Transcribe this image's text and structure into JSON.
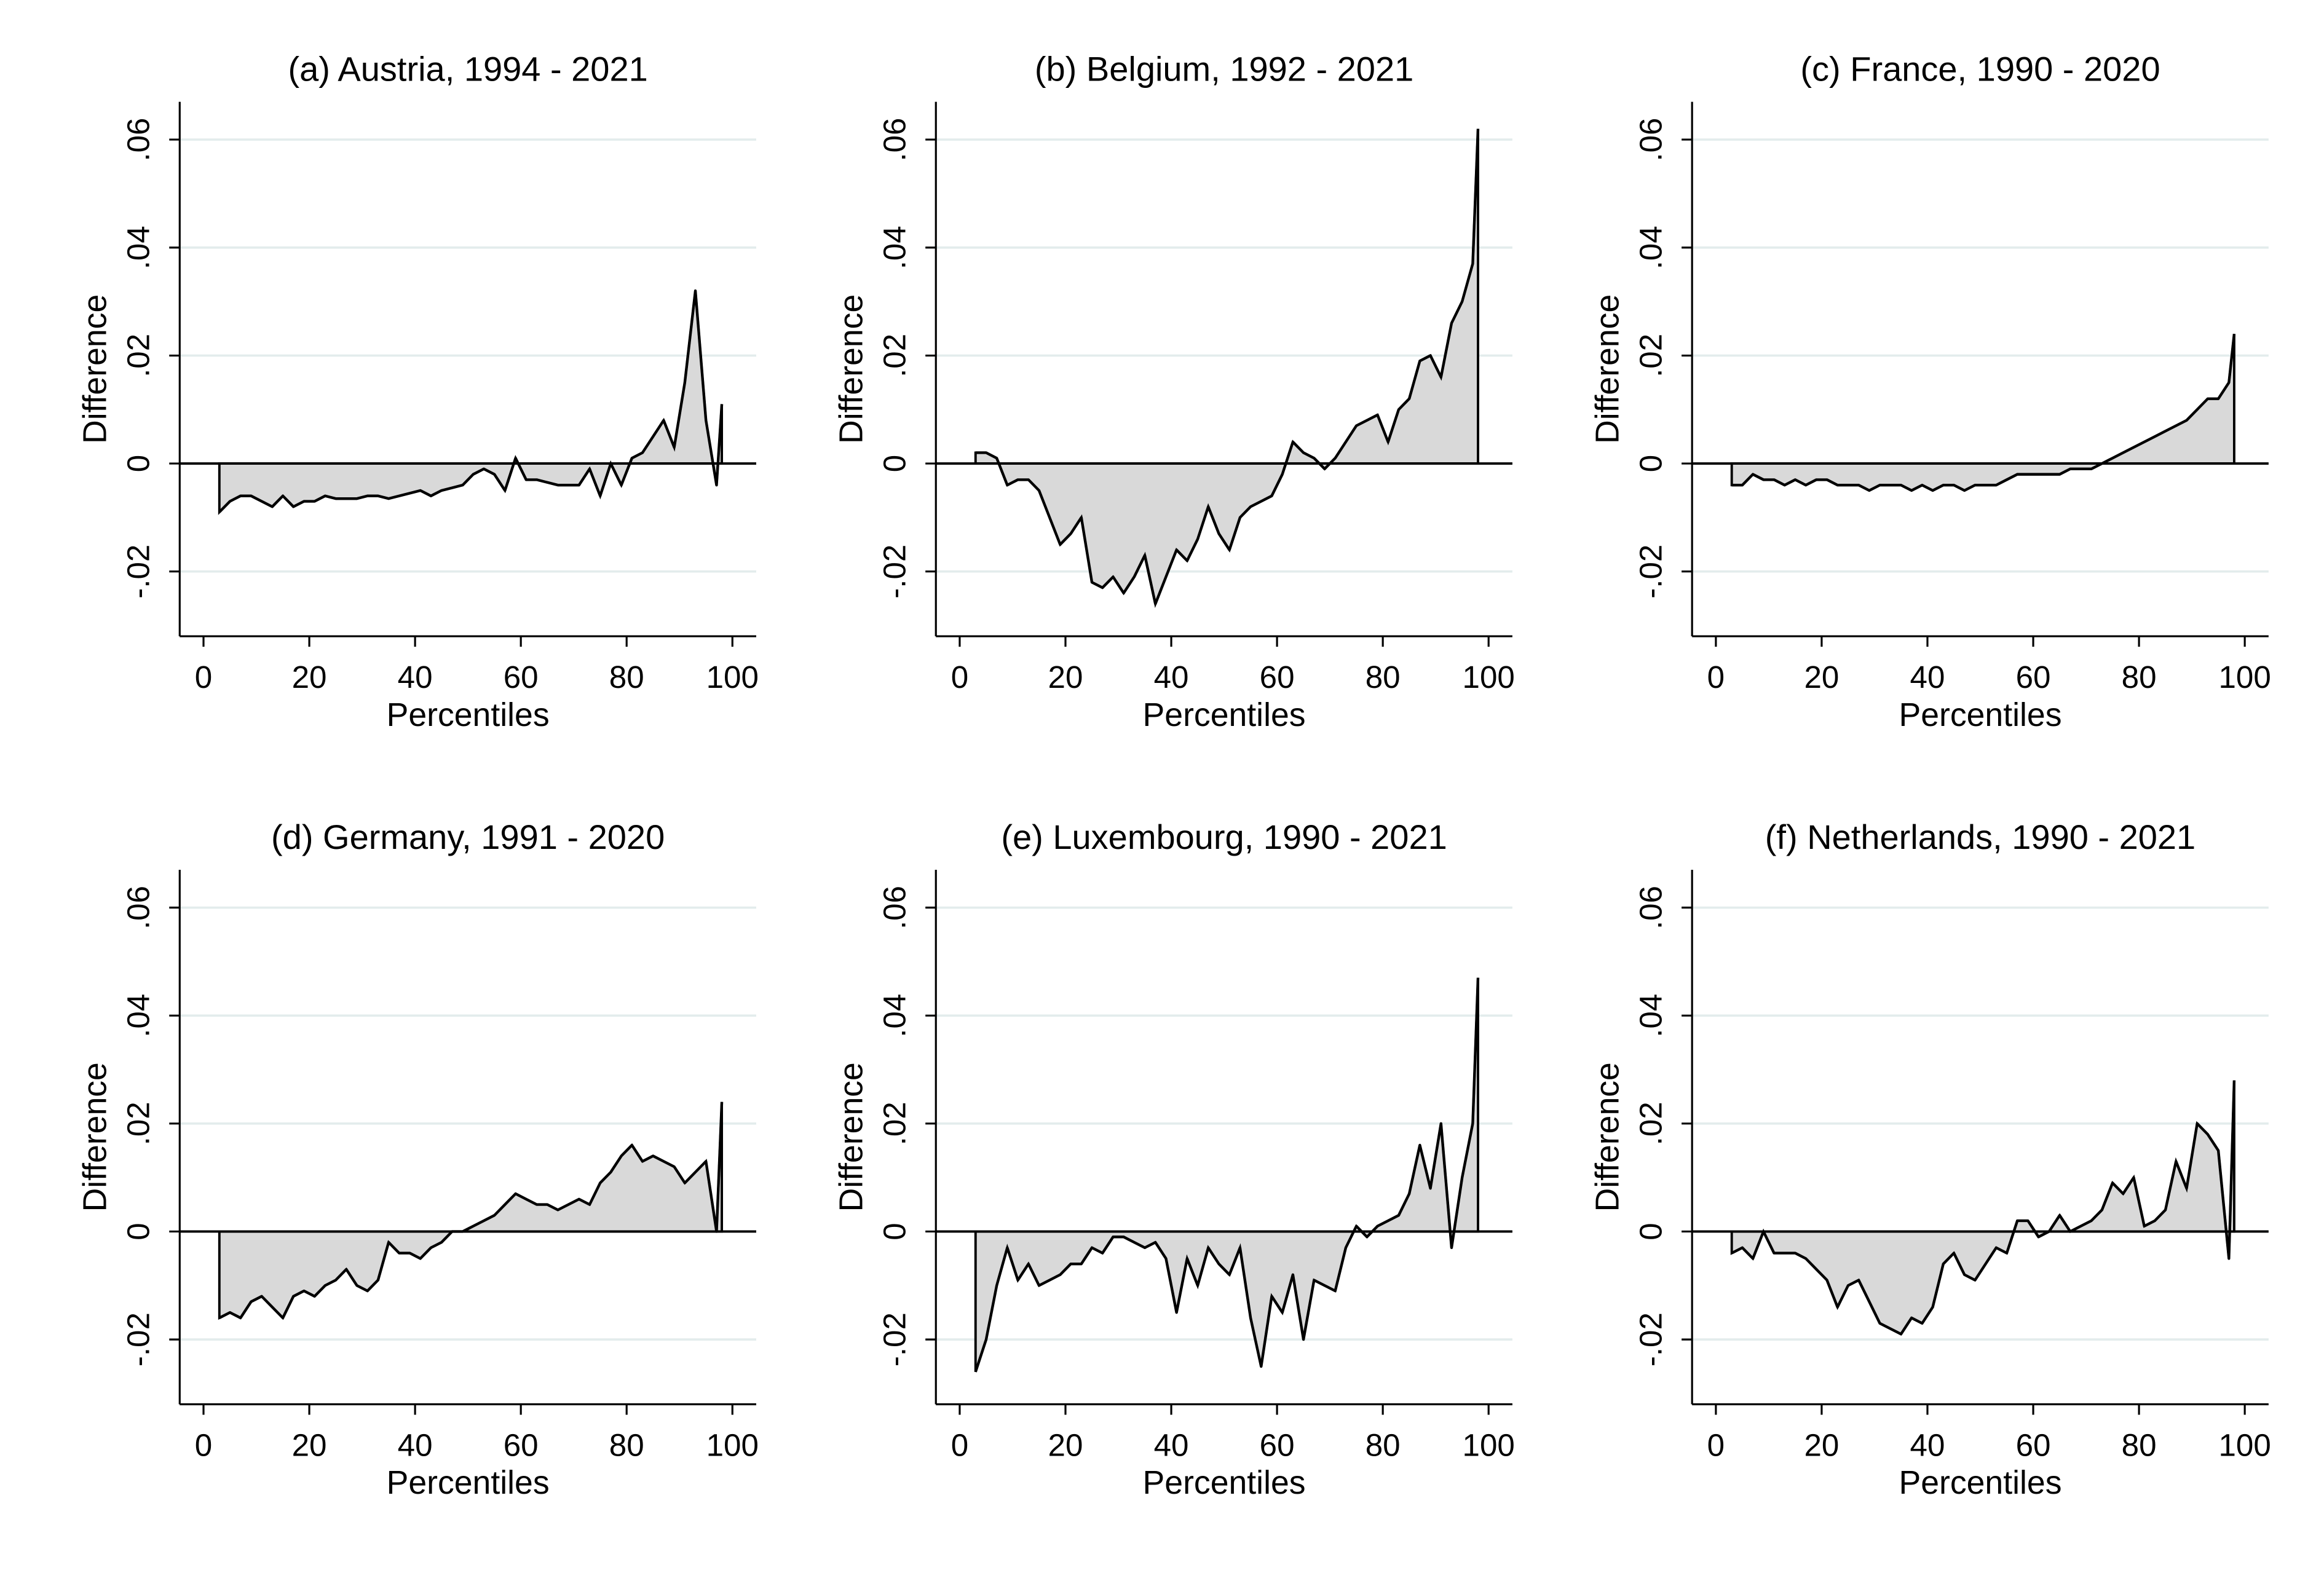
{
  "chart_data": [
    {
      "type": "area",
      "title": "(a) Austria, 1994 - 2021",
      "xlabel": "Percentiles",
      "ylabel": "Difference",
      "fill": "#d9d9d9",
      "line_color": "#000000",
      "grid": true,
      "x": [
        3,
        5,
        7,
        9,
        11,
        13,
        15,
        17,
        19,
        21,
        23,
        25,
        27,
        29,
        31,
        33,
        35,
        37,
        39,
        41,
        43,
        45,
        47,
        49,
        51,
        53,
        55,
        57,
        59,
        61,
        63,
        65,
        67,
        69,
        71,
        73,
        75,
        77,
        79,
        81,
        83,
        85,
        87,
        89,
        91,
        93,
        95,
        97,
        98
      ],
      "values": [
        -0.009,
        -0.007,
        -0.006,
        -0.006,
        -0.007,
        -0.008,
        -0.006,
        -0.008,
        -0.007,
        -0.007,
        -0.006,
        -0.0065,
        -0.0065,
        -0.0065,
        -0.006,
        -0.006,
        -0.0065,
        -0.006,
        -0.0055,
        -0.005,
        -0.006,
        -0.005,
        -0.0045,
        -0.004,
        -0.002,
        -0.001,
        -0.002,
        -0.005,
        0.001,
        -0.003,
        -0.003,
        -0.0035,
        -0.004,
        -0.004,
        -0.004,
        -0.001,
        -0.006,
        0,
        -0.004,
        0.001,
        0.002,
        0.005,
        0.008,
        0.003,
        0.015,
        0.032,
        0.008,
        -0.004,
        0.011
      ],
      "xlim": [
        -4.5,
        104.5
      ],
      "ylim": [
        -0.032,
        0.067
      ],
      "xticks": [
        0,
        20,
        40,
        60,
        80,
        100
      ],
      "yticks": [
        {
          "value": -0.02,
          "label": "-.02"
        },
        0,
        {
          "value": 0.02,
          "label": ".02"
        },
        {
          "value": 0.04,
          "label": ".04"
        },
        {
          "value": 0.06,
          "label": ".06"
        }
      ]
    },
    {
      "type": "area",
      "title": "(b) Belgium, 1992 - 2021",
      "xlabel": "Percentiles",
      "ylabel": "Difference",
      "fill": "#d9d9d9",
      "line_color": "#000000",
      "grid": true,
      "x": [
        3,
        5,
        7,
        9,
        11,
        13,
        15,
        17,
        19,
        21,
        23,
        25,
        27,
        29,
        31,
        33,
        35,
        37,
        39,
        41,
        43,
        45,
        47,
        49,
        51,
        53,
        55,
        57,
        59,
        61,
        63,
        65,
        67,
        69,
        71,
        73,
        75,
        77,
        79,
        81,
        83,
        85,
        87,
        89,
        91,
        93,
        95,
        97,
        98
      ],
      "values": [
        0.002,
        0.002,
        0.001,
        -0.004,
        -0.003,
        -0.003,
        -0.005,
        -0.01,
        -0.015,
        -0.013,
        -0.01,
        -0.022,
        -0.023,
        -0.021,
        -0.024,
        -0.021,
        -0.017,
        -0.026,
        -0.021,
        -0.016,
        -0.018,
        -0.014,
        -0.008,
        -0.013,
        -0.016,
        -0.01,
        -0.008,
        -0.007,
        -0.006,
        -0.002,
        0.004,
        0.002,
        0.001,
        -0.001,
        0.001,
        0.004,
        0.007,
        0.008,
        0.009,
        0.004,
        0.01,
        0.012,
        0.019,
        0.02,
        0.016,
        0.026,
        0.03,
        0.037,
        0.062
      ],
      "xlim": [
        -4.5,
        104.5
      ],
      "ylim": [
        -0.032,
        0.067
      ],
      "xticks": [
        0,
        20,
        40,
        60,
        80,
        100
      ],
      "yticks": [
        {
          "value": -0.02,
          "label": "-.02"
        },
        0,
        {
          "value": 0.02,
          "label": ".02"
        },
        {
          "value": 0.04,
          "label": ".04"
        },
        {
          "value": 0.06,
          "label": ".06"
        }
      ]
    },
    {
      "type": "area",
      "title": "(c) France, 1990 - 2020",
      "xlabel": "Percentiles",
      "ylabel": "Difference",
      "fill": "#d9d9d9",
      "line_color": "#000000",
      "grid": true,
      "x": [
        3,
        5,
        7,
        9,
        11,
        13,
        15,
        17,
        19,
        21,
        23,
        25,
        27,
        29,
        31,
        33,
        35,
        37,
        39,
        41,
        43,
        45,
        47,
        49,
        51,
        53,
        55,
        57,
        59,
        61,
        63,
        65,
        67,
        69,
        71,
        73,
        75,
        77,
        79,
        81,
        83,
        85,
        87,
        89,
        91,
        93,
        95,
        97,
        98
      ],
      "values": [
        -0.004,
        -0.004,
        -0.002,
        -0.003,
        -0.003,
        -0.004,
        -0.003,
        -0.004,
        -0.003,
        -0.003,
        -0.004,
        -0.004,
        -0.004,
        -0.005,
        -0.004,
        -0.004,
        -0.004,
        -0.005,
        -0.004,
        -0.005,
        -0.004,
        -0.004,
        -0.005,
        -0.004,
        -0.004,
        -0.004,
        -0.003,
        -0.002,
        -0.002,
        -0.002,
        -0.002,
        -0.002,
        -0.001,
        -0.001,
        -0.001,
        0,
        0.001,
        0.002,
        0.003,
        0.004,
        0.005,
        0.006,
        0.007,
        0.008,
        0.01,
        0.012,
        0.012,
        0.015,
        0.024
      ],
      "xlim": [
        -4.5,
        104.5
      ],
      "ylim": [
        -0.032,
        0.067
      ],
      "xticks": [
        0,
        20,
        40,
        60,
        80,
        100
      ],
      "yticks": [
        {
          "value": -0.02,
          "label": "-.02"
        },
        0,
        {
          "value": 0.02,
          "label": ".02"
        },
        {
          "value": 0.04,
          "label": ".04"
        },
        {
          "value": 0.06,
          "label": ".06"
        }
      ]
    },
    {
      "type": "area",
      "title": "(d) Germany, 1991 - 2020",
      "xlabel": "Percentiles",
      "ylabel": "Difference",
      "fill": "#d9d9d9",
      "line_color": "#000000",
      "grid": true,
      "x": [
        3,
        5,
        7,
        9,
        11,
        13,
        15,
        17,
        19,
        21,
        23,
        25,
        27,
        29,
        31,
        33,
        35,
        37,
        39,
        41,
        43,
        45,
        47,
        49,
        51,
        53,
        55,
        57,
        59,
        61,
        63,
        65,
        67,
        69,
        71,
        73,
        75,
        77,
        79,
        81,
        83,
        85,
        87,
        89,
        91,
        93,
        95,
        97,
        98
      ],
      "values": [
        -0.016,
        -0.015,
        -0.016,
        -0.013,
        -0.012,
        -0.014,
        -0.016,
        -0.012,
        -0.011,
        -0.012,
        -0.01,
        -0.009,
        -0.007,
        -0.01,
        -0.011,
        -0.009,
        -0.002,
        -0.004,
        -0.004,
        -0.005,
        -0.003,
        -0.002,
        0,
        0,
        0.001,
        0.002,
        0.003,
        0.005,
        0.007,
        0.006,
        0.005,
        0.005,
        0.004,
        0.005,
        0.006,
        0.005,
        0.009,
        0.011,
        0.014,
        0.016,
        0.013,
        0.014,
        0.013,
        0.012,
        0.009,
        0.011,
        0.013,
        0,
        0.024
      ],
      "xlim": [
        -4.5,
        104.5
      ],
      "ylim": [
        -0.032,
        0.067
      ],
      "xticks": [
        0,
        20,
        40,
        60,
        80,
        100
      ],
      "yticks": [
        {
          "value": -0.02,
          "label": "-.02"
        },
        0,
        {
          "value": 0.02,
          "label": ".02"
        },
        {
          "value": 0.04,
          "label": ".04"
        },
        {
          "value": 0.06,
          "label": ".06"
        }
      ]
    },
    {
      "type": "area",
      "title": "(e) Luxembourg, 1990 - 2021",
      "xlabel": "Percentiles",
      "ylabel": "Difference",
      "fill": "#d9d9d9",
      "line_color": "#000000",
      "grid": true,
      "x": [
        3,
        5,
        7,
        9,
        11,
        13,
        15,
        17,
        19,
        21,
        23,
        25,
        27,
        29,
        31,
        33,
        35,
        37,
        39,
        41,
        43,
        45,
        47,
        49,
        51,
        53,
        55,
        57,
        59,
        61,
        63,
        65,
        67,
        69,
        71,
        73,
        75,
        77,
        79,
        81,
        83,
        85,
        87,
        89,
        91,
        93,
        95,
        97,
        98
      ],
      "values": [
        -0.026,
        -0.02,
        -0.01,
        -0.003,
        -0.009,
        -0.006,
        -0.01,
        -0.009,
        -0.008,
        -0.006,
        -0.006,
        -0.003,
        -0.004,
        -0.001,
        -0.001,
        -0.002,
        -0.003,
        -0.002,
        -0.005,
        -0.015,
        -0.005,
        -0.01,
        -0.003,
        -0.006,
        -0.008,
        -0.003,
        -0.016,
        -0.025,
        -0.012,
        -0.015,
        -0.008,
        -0.02,
        -0.009,
        -0.01,
        -0.011,
        -0.003,
        0.001,
        -0.001,
        0.001,
        0.002,
        0.003,
        0.007,
        0.016,
        0.008,
        0.02,
        -0.003,
        0.01,
        0.02,
        0.047
      ],
      "xlim": [
        -4.5,
        104.5
      ],
      "ylim": [
        -0.032,
        0.067
      ],
      "xticks": [
        0,
        20,
        40,
        60,
        80,
        100
      ],
      "yticks": [
        {
          "value": -0.02,
          "label": "-.02"
        },
        0,
        {
          "value": 0.02,
          "label": ".02"
        },
        {
          "value": 0.04,
          "label": ".04"
        },
        {
          "value": 0.06,
          "label": ".06"
        }
      ]
    },
    {
      "type": "area",
      "title": "(f) Netherlands, 1990 - 2021",
      "xlabel": "Percentiles",
      "ylabel": "Difference",
      "fill": "#d9d9d9",
      "line_color": "#000000",
      "grid": true,
      "x": [
        3,
        5,
        7,
        9,
        11,
        13,
        15,
        17,
        19,
        21,
        23,
        25,
        27,
        29,
        31,
        33,
        35,
        37,
        39,
        41,
        43,
        45,
        47,
        49,
        51,
        53,
        55,
        57,
        59,
        61,
        63,
        65,
        67,
        69,
        71,
        73,
        75,
        77,
        79,
        81,
        83,
        85,
        87,
        89,
        91,
        93,
        95,
        97,
        98
      ],
      "values": [
        -0.004,
        -0.003,
        -0.005,
        0,
        -0.004,
        -0.004,
        -0.004,
        -0.005,
        -0.007,
        -0.009,
        -0.014,
        -0.01,
        -0.009,
        -0.013,
        -0.017,
        -0.018,
        -0.019,
        -0.016,
        -0.017,
        -0.014,
        -0.006,
        -0.004,
        -0.008,
        -0.009,
        -0.006,
        -0.003,
        -0.004,
        0.002,
        0.002,
        -0.001,
        0,
        0.003,
        0,
        0.001,
        0.002,
        0.004,
        0.009,
        0.007,
        0.01,
        0.001,
        0.002,
        0.004,
        0.013,
        0.008,
        0.02,
        0.018,
        0.015,
        -0.005,
        0.028
      ],
      "xlim": [
        -4.5,
        104.5
      ],
      "ylim": [
        -0.032,
        0.067
      ],
      "xticks": [
        0,
        20,
        40,
        60,
        80,
        100
      ],
      "yticks": [
        {
          "value": -0.02,
          "label": "-.02"
        },
        0,
        {
          "value": 0.02,
          "label": ".02"
        },
        {
          "value": 0.04,
          "label": ".04"
        },
        {
          "value": 0.06,
          "label": ".06"
        }
      ]
    }
  ]
}
